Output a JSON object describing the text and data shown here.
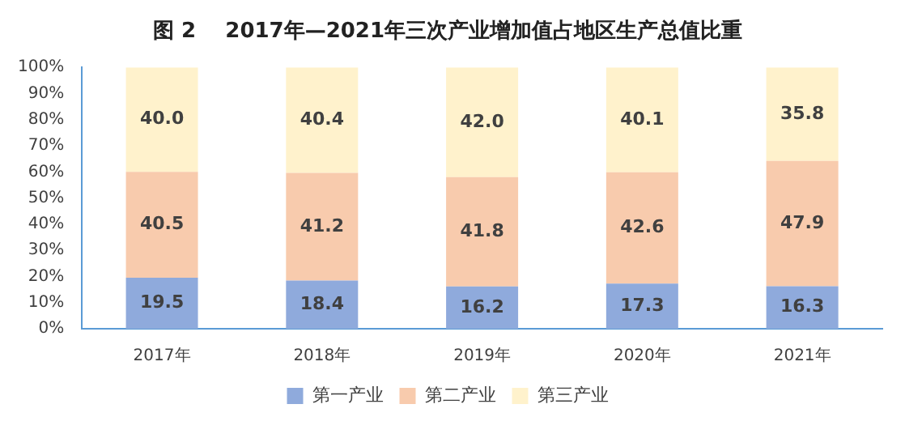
{
  "chart_data": {
    "type": "bar",
    "stacked": true,
    "title": "图 2    2017年—2021年三次产业增加值占地区生产总值比重",
    "categories": [
      "2017年",
      "2018年",
      "2019年",
      "2020年",
      "2021年"
    ],
    "series": [
      {
        "name": "第一产业",
        "color": "#8faadc",
        "values": [
          19.5,
          18.4,
          16.2,
          17.3,
          16.3
        ]
      },
      {
        "name": "第二产业",
        "color": "#f8cbad",
        "values": [
          40.5,
          41.2,
          41.8,
          42.6,
          47.9
        ]
      },
      {
        "name": "第三产业",
        "color": "#fff2cc",
        "values": [
          40.0,
          40.4,
          42.0,
          40.1,
          35.8
        ],
        "value_labels": [
          "40.0",
          "40.4",
          "42.0",
          "40.1",
          "35.8"
        ]
      }
    ],
    "ylim": [
      0,
      100
    ],
    "yticks": [
      {
        "value": 0,
        "label": "0%"
      },
      {
        "value": 10,
        "label": "10%"
      },
      {
        "value": 20,
        "label": "20%"
      },
      {
        "value": 30,
        "label": "30%"
      },
      {
        "value": 40,
        "label": "40%"
      },
      {
        "value": 50,
        "label": "50%"
      },
      {
        "value": 60,
        "label": "60%"
      },
      {
        "value": 70,
        "label": "70%"
      },
      {
        "value": 80,
        "label": "80%"
      },
      {
        "value": 90,
        "label": "90%"
      },
      {
        "value": 100,
        "label": "100%"
      }
    ],
    "grid": false,
    "legend": "bottom",
    "data_labels": true
  }
}
